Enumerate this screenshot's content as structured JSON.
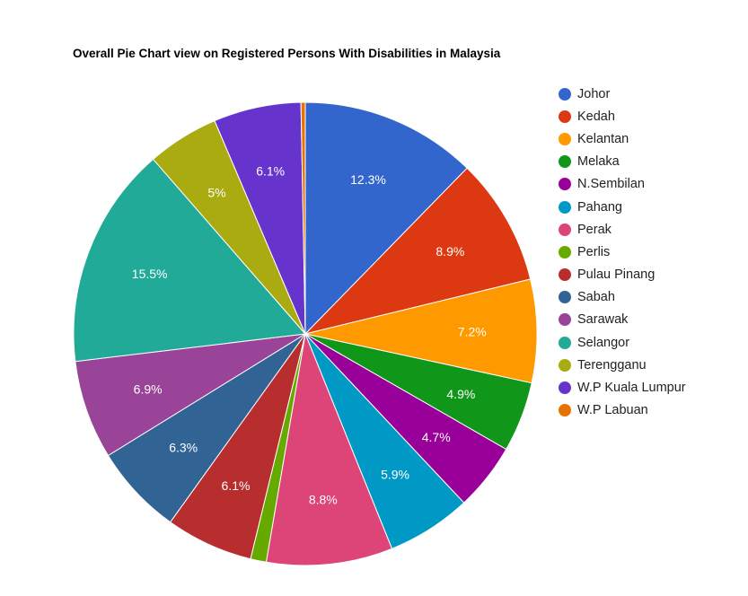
{
  "chart_data": {
    "type": "pie",
    "title": "Overall Pie Chart view on Registered Persons With Disabilities in Malaysia",
    "legend_position": "right",
    "slices": [
      {
        "name": "Johor",
        "value": 12.3,
        "label": "12.3%",
        "color": "#3366cc"
      },
      {
        "name": "Kedah",
        "value": 8.9,
        "label": "8.9%",
        "color": "#dc3912"
      },
      {
        "name": "Kelantan",
        "value": 7.2,
        "label": "7.2%",
        "color": "#ff9900"
      },
      {
        "name": "Melaka",
        "value": 4.9,
        "label": "4.9%",
        "color": "#109618"
      },
      {
        "name": "N.Sembilan",
        "value": 4.7,
        "label": "4.7%",
        "color": "#990099"
      },
      {
        "name": "Pahang",
        "value": 5.9,
        "label": "5.9%",
        "color": "#0099c6"
      },
      {
        "name": "Perak",
        "value": 8.8,
        "label": "8.8%",
        "color": "#dd4477"
      },
      {
        "name": "Perlis",
        "value": 1.1,
        "label": "",
        "color": "#66aa00"
      },
      {
        "name": "Pulau Pinang",
        "value": 6.1,
        "label": "6.1%",
        "color": "#b82e2e"
      },
      {
        "name": "Sabah",
        "value": 6.3,
        "label": "6.3%",
        "color": "#316395"
      },
      {
        "name": "Sarawak",
        "value": 6.9,
        "label": "6.9%",
        "color": "#994499"
      },
      {
        "name": "Selangor",
        "value": 15.5,
        "label": "15.5%",
        "color": "#22aa99"
      },
      {
        "name": "Terengganu",
        "value": 5.0,
        "label": "5%",
        "color": "#aaaa11"
      },
      {
        "name": "W.P Kuala Lumpur",
        "value": 6.1,
        "label": "6.1%",
        "color": "#6633cc"
      },
      {
        "name": "W.P Labuan",
        "value": 0.3,
        "label": "",
        "color": "#e67300"
      }
    ]
  }
}
